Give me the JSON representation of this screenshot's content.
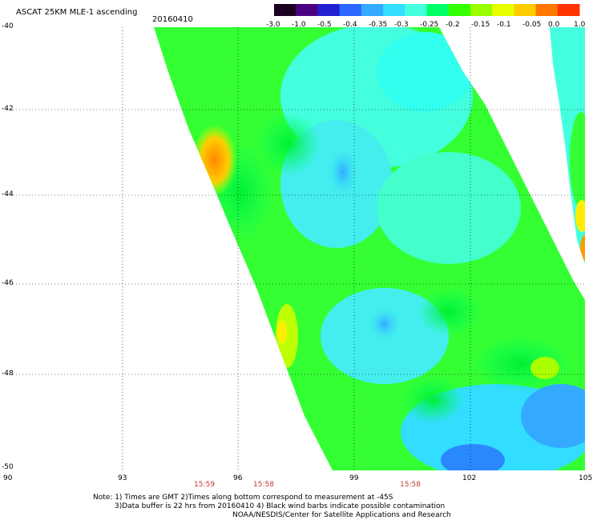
{
  "header": {
    "title": "ASCAT 25KM MLE-1 ascending",
    "date": "20160410"
  },
  "colorbar": {
    "labels": [
      "-3.0",
      "-1.0",
      "-0.5",
      "-0.4",
      "-0.35",
      "-0.3",
      "-0.25",
      "-0.2",
      "-0.15",
      "-0.1",
      "-0.05",
      "0.0",
      "1.0"
    ],
    "colors": [
      "#1a0020",
      "#4b0082",
      "#2020d0",
      "#2a66ff",
      "#33aaff",
      "#33ddff",
      "#44ffdd",
      "#00ff66",
      "#33ff00",
      "#99ff00",
      "#e8ff00",
      "#ffcc00",
      "#ff7700",
      "#ff3300"
    ]
  },
  "axes": {
    "lat_labels": [
      "-40",
      "-42",
      "-44",
      "-46",
      "-48",
      "-50"
    ],
    "lon_labels": [
      "90",
      "93",
      "96",
      "99",
      "102",
      "105"
    ]
  },
  "times": [
    "15:59",
    "15:58",
    "15:58"
  ],
  "notes": {
    "line1": "Note: 1) Times are GMT 2)Times along bottom correspond to measurement at -45S",
    "line2": "3)Data buffer is 22 hrs from 20160410 4) Black wind barbs indicate possible contamination",
    "line3": "NOAA/NESDIS/Center for Satellite Applications and Research"
  }
}
